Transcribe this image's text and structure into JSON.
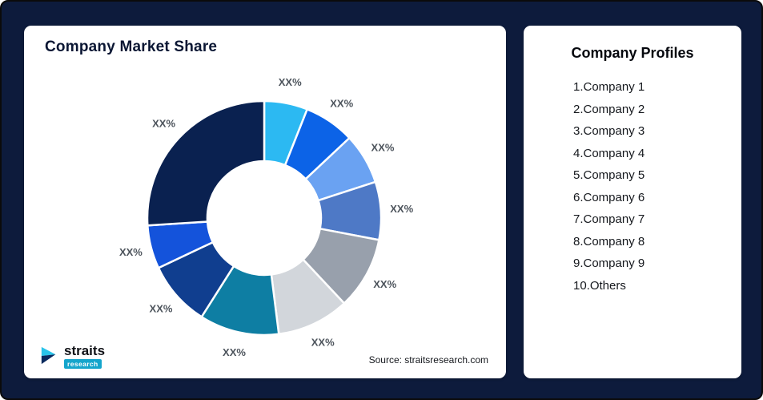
{
  "page": {
    "background": "#0D1B3C"
  },
  "left_card": {
    "title": "Company Market Share",
    "source": "Source: straitsresearch.com",
    "logo": {
      "brand": "straits",
      "sub": "research"
    }
  },
  "right_card": {
    "title": "Company Profiles",
    "items": [
      "1.Company 1",
      "2.Company 2",
      "3.Company 3",
      "4.Company 4",
      "5.Company 5",
      "6.Company 6",
      "7.Company 7",
      "8.Company 8",
      "9.Company 9",
      "10.Others"
    ]
  },
  "chart_data": {
    "type": "pie",
    "donut": true,
    "title": "Company Market Share",
    "start_angle_deg": 0,
    "direction": "clockwise",
    "note": "All slice labels shown as placeholder XX%; values estimated from arc sizes",
    "segments": [
      {
        "label": "XX%",
        "value": 6,
        "color": "#2CB9F2"
      },
      {
        "label": "XX%",
        "value": 7,
        "color": "#0C63E7"
      },
      {
        "label": "XX%",
        "value": 7,
        "color": "#6AA2F2"
      },
      {
        "label": "XX%",
        "value": 8,
        "color": "#4E79C6"
      },
      {
        "label": "XX%",
        "value": 10,
        "color": "#98A0AC"
      },
      {
        "label": "XX%",
        "value": 10,
        "color": "#D2D6DB"
      },
      {
        "label": "XX%",
        "value": 11,
        "color": "#0E7EA3"
      },
      {
        "label": "XX%",
        "value": 9,
        "color": "#103E8F"
      },
      {
        "label": "XX%",
        "value": 6,
        "color": "#1453DB"
      },
      {
        "label": "XX%",
        "value": 26,
        "color": "#0A2150"
      }
    ],
    "source": "Source: straitsresearch.com"
  }
}
